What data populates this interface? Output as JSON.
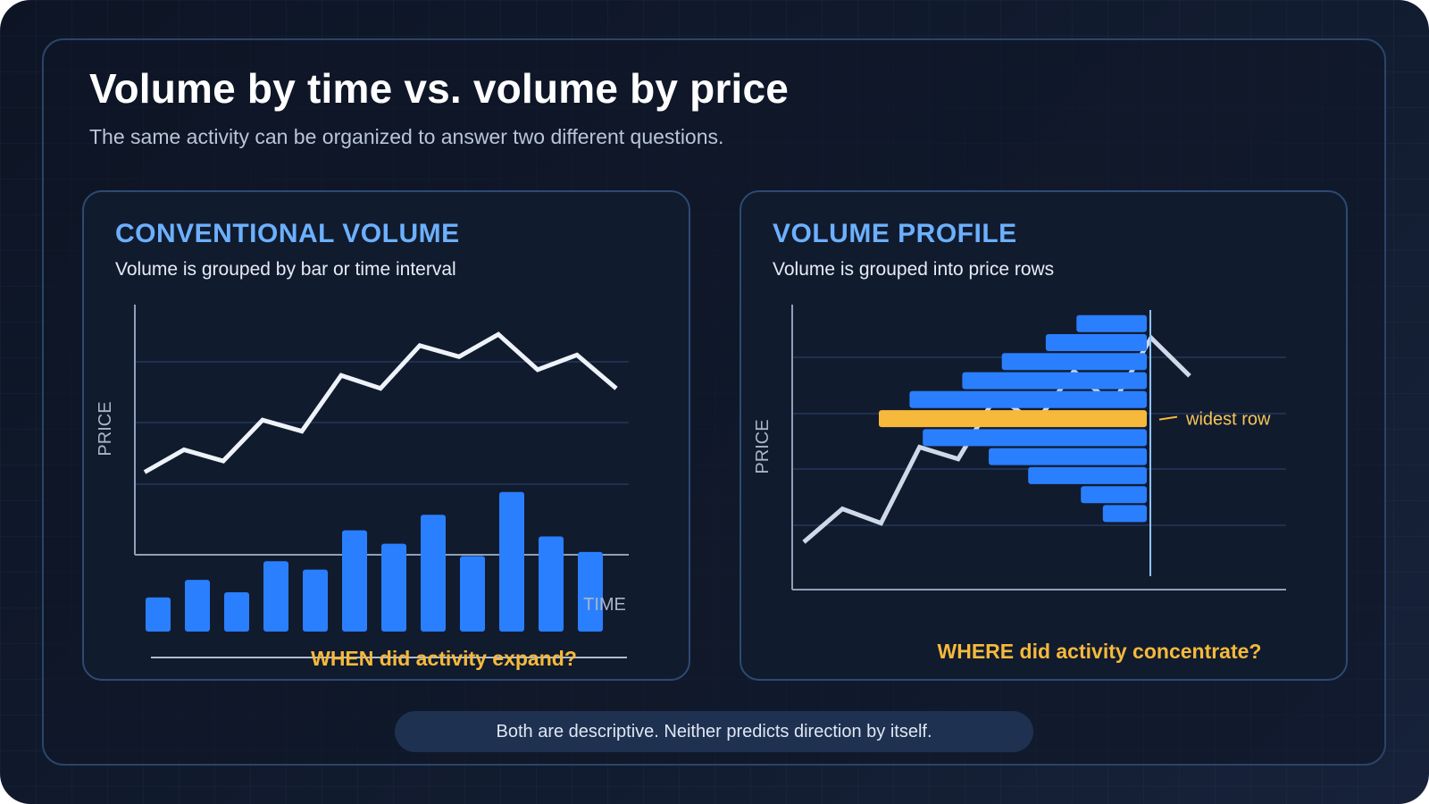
{
  "header": {
    "title": "Volume by time vs. volume by price",
    "subtitle": "The same activity can be organized to answer two different questions."
  },
  "left_panel": {
    "title": "CONVENTIONAL VOLUME",
    "description": "Volume is grouped by bar or time interval",
    "question": "WHEN did activity expand?"
  },
  "right_panel": {
    "title": "VOLUME PROFILE",
    "description": "Volume is grouped into price rows",
    "question": "WHERE did activity concentrate?"
  },
  "footer": {
    "note": "Both are descriptive. Neither predicts direction by itself."
  },
  "colors": {
    "bar_blue": "#2a7fff",
    "highlight_gold": "#f6b93b",
    "price_line": "#eef3fa",
    "accent_title": "#6cb0ff",
    "question_gold": "#f6b93b"
  },
  "chart_data": [
    {
      "type": "line+bar",
      "xlabel": "TIME",
      "ylabel": "PRICE",
      "grid": true,
      "price_line": [
        30,
        42,
        36,
        58,
        52,
        82,
        75,
        98,
        92,
        104,
        85,
        93,
        75
      ],
      "price_ylim": [
        0,
        120
      ],
      "volume_bars": [
        33,
        50,
        38,
        68,
        60,
        98,
        85,
        113,
        73,
        135,
        92,
        77
      ],
      "volume_ylim": [
        0,
        140
      ]
    },
    {
      "type": "volume-profile",
      "xlabel": "",
      "ylabel": "PRICE",
      "grid": true,
      "price_line": [
        20,
        34,
        28,
        60,
        55,
        82,
        70,
        92,
        78,
        106,
        90
      ],
      "price_ylim": [
        0,
        120
      ],
      "rows": [
        {
          "price": 112,
          "volume": 16
        },
        {
          "price": 104,
          "volume": 23
        },
        {
          "price": 96,
          "volume": 33
        },
        {
          "price": 88,
          "volume": 42
        },
        {
          "price": 80,
          "volume": 54
        },
        {
          "price": 72,
          "volume": 61,
          "highlight": true
        },
        {
          "price": 64,
          "volume": 51
        },
        {
          "price": 56,
          "volume": 36
        },
        {
          "price": 48,
          "volume": 27
        },
        {
          "price": 40,
          "volume": 15
        },
        {
          "price": 32,
          "volume": 10
        }
      ],
      "volume_max": 61,
      "annotation": "widest row"
    }
  ]
}
